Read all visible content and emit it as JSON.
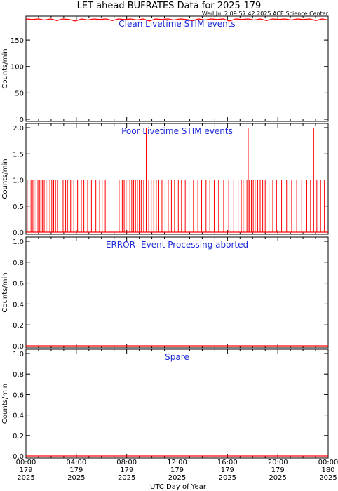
{
  "title": "LET ahead BUFRATES Data for 2025-179",
  "timestamp": "Wed Jul  2 09:57:42 2025 ACE Science Center",
  "colors": {
    "series": "#ff0000",
    "panel_title": "#1f2bd8",
    "axes": "#000000"
  },
  "chart_data": [
    {
      "type": "line",
      "title": "Clean Livetime STIM events",
      "ylabel": "Counts/min",
      "xlim": [
        0,
        24
      ],
      "ylim": [
        0,
        190
      ],
      "yticks": [
        0,
        50,
        100,
        150
      ],
      "ytick_labels": [
        "0",
        "50",
        "100",
        "150"
      ],
      "series": [
        {
          "values": [
            190,
            189,
            190,
            188,
            190,
            187,
            190,
            189,
            186,
            190,
            188,
            190,
            189,
            190,
            187,
            190,
            189,
            190,
            188,
            190,
            186,
            190,
            189,
            190,
            188,
            190,
            189,
            187,
            190,
            188,
            190,
            189,
            190,
            186,
            190,
            189,
            190,
            188,
            190,
            187,
            190,
            189,
            190,
            188,
            190,
            189,
            190,
            187,
            190,
            188
          ]
        }
      ]
    },
    {
      "type": "line",
      "title": "Poor Livetime STIM events",
      "ylabel": "Counts/min",
      "xlim": [
        0,
        24
      ],
      "ylim": [
        0,
        2
      ],
      "yticks": [
        0,
        0.5,
        1.0,
        1.5,
        2.0
      ],
      "ytick_labels": [
        "0.0",
        "0.5",
        "1.0",
        "1.5",
        "2.0"
      ],
      "series": [
        {
          "spikes": [
            [
              0.1,
              1
            ],
            [
              0.25,
              1
            ],
            [
              0.4,
              1
            ],
            [
              0.55,
              1
            ],
            [
              0.65,
              1
            ],
            [
              0.8,
              1
            ],
            [
              0.95,
              1
            ],
            [
              1.1,
              1
            ],
            [
              1.2,
              1
            ],
            [
              1.3,
              1
            ],
            [
              1.45,
              1
            ],
            [
              1.6,
              1
            ],
            [
              1.75,
              1
            ],
            [
              1.9,
              1
            ],
            [
              2.05,
              1
            ],
            [
              2.2,
              1
            ],
            [
              2.35,
              1
            ],
            [
              2.5,
              1
            ],
            [
              2.7,
              1
            ],
            [
              2.95,
              1
            ],
            [
              3.15,
              1
            ],
            [
              3.3,
              1
            ],
            [
              3.55,
              1
            ],
            [
              3.8,
              1
            ],
            [
              4.1,
              1
            ],
            [
              4.4,
              1
            ],
            [
              4.6,
              1
            ],
            [
              4.9,
              1
            ],
            [
              5.2,
              1
            ],
            [
              5.55,
              1
            ],
            [
              5.85,
              1
            ],
            [
              6.05,
              1
            ],
            [
              6.3,
              1
            ],
            [
              7.4,
              1
            ],
            [
              7.65,
              1
            ],
            [
              7.8,
              1
            ],
            [
              7.95,
              1
            ],
            [
              8.1,
              1
            ],
            [
              8.25,
              1
            ],
            [
              8.4,
              1
            ],
            [
              8.55,
              1
            ],
            [
              8.7,
              1
            ],
            [
              8.85,
              1
            ],
            [
              9.0,
              1
            ],
            [
              9.15,
              1
            ],
            [
              9.35,
              1
            ],
            [
              9.55,
              2
            ],
            [
              9.75,
              1
            ],
            [
              9.95,
              1
            ],
            [
              10.15,
              1
            ],
            [
              10.35,
              1
            ],
            [
              10.55,
              1
            ],
            [
              10.8,
              1
            ],
            [
              11.05,
              1
            ],
            [
              11.3,
              1
            ],
            [
              11.55,
              1
            ],
            [
              11.8,
              1
            ],
            [
              12.1,
              1
            ],
            [
              12.35,
              1
            ],
            [
              12.65,
              1
            ],
            [
              12.95,
              1
            ],
            [
              13.3,
              1
            ],
            [
              13.65,
              1
            ],
            [
              13.95,
              1
            ],
            [
              14.3,
              1
            ],
            [
              14.6,
              1
            ],
            [
              14.95,
              1
            ],
            [
              15.3,
              1
            ],
            [
              15.7,
              1
            ],
            [
              16.1,
              1
            ],
            [
              16.5,
              1
            ],
            [
              16.85,
              1
            ],
            [
              17.1,
              1
            ],
            [
              17.25,
              1
            ],
            [
              17.4,
              1
            ],
            [
              17.55,
              1
            ],
            [
              17.65,
              2
            ],
            [
              17.75,
              1
            ],
            [
              17.9,
              1
            ],
            [
              18.05,
              1
            ],
            [
              18.2,
              1
            ],
            [
              18.4,
              1
            ],
            [
              18.6,
              1
            ],
            [
              18.8,
              1
            ],
            [
              19.0,
              1
            ],
            [
              19.3,
              1
            ],
            [
              19.6,
              1
            ],
            [
              19.9,
              1
            ],
            [
              20.3,
              1
            ],
            [
              20.7,
              1
            ],
            [
              21.1,
              1
            ],
            [
              21.5,
              1
            ],
            [
              21.9,
              1
            ],
            [
              22.3,
              1
            ],
            [
              22.6,
              1
            ],
            [
              22.85,
              2
            ],
            [
              23.1,
              1
            ],
            [
              23.4,
              1
            ],
            [
              23.7,
              1
            ]
          ]
        }
      ]
    },
    {
      "type": "line",
      "title": "ERROR -Event Processing aborted",
      "ylabel": "Counts/min",
      "xlim": [
        0,
        24
      ],
      "ylim": [
        0,
        1
      ],
      "yticks": [
        0,
        0.2,
        0.4,
        0.6,
        0.8,
        1.0
      ],
      "ytick_labels": [
        "0.0",
        "0.2",
        "0.4",
        "0.6",
        "0.8",
        "1.0"
      ],
      "series": [
        {
          "values": [
            0,
            0
          ]
        }
      ]
    },
    {
      "type": "line",
      "title": "Spare",
      "ylabel": "Counts/min",
      "xlim": [
        0,
        24
      ],
      "ylim": [
        0,
        1
      ],
      "yticks": [
        0,
        0.2,
        0.4,
        0.6,
        0.8,
        1.0
      ],
      "ytick_labels": [
        "0.0",
        "0.2",
        "0.4",
        "0.6",
        "0.8",
        "1.0"
      ],
      "series": [
        {
          "values": [
            0,
            0
          ]
        }
      ]
    }
  ],
  "x_axis": {
    "label": "UTC Day of Year",
    "ticks": [
      {
        "value": 0,
        "time": "00:00",
        "doy": "179",
        "year": "2025"
      },
      {
        "value": 4,
        "time": "04:00",
        "doy": "179",
        "year": "2025"
      },
      {
        "value": 8,
        "time": "08:00",
        "doy": "179",
        "year": "2025"
      },
      {
        "value": 12,
        "time": "12:00",
        "doy": "179",
        "year": "2025"
      },
      {
        "value": 16,
        "time": "16:00",
        "doy": "179",
        "year": "2025"
      },
      {
        "value": 20,
        "time": "20:00",
        "doy": "179",
        "year": "2025"
      },
      {
        "value": 24,
        "time": "00:00",
        "doy": "180",
        "year": "2025"
      }
    ]
  }
}
